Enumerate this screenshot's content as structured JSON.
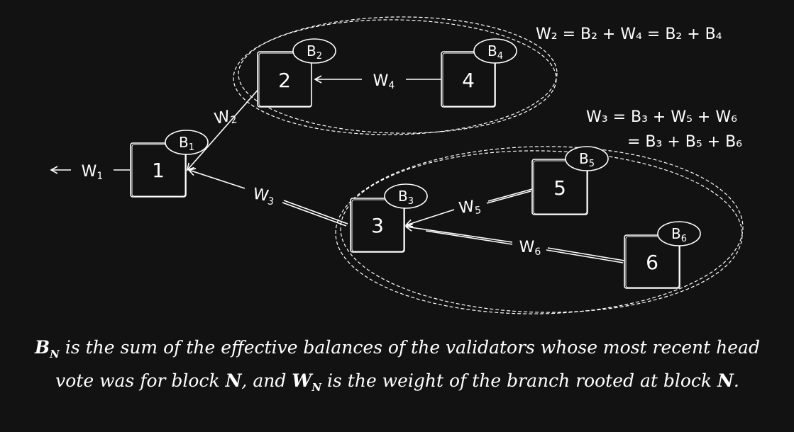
{
  "diagram": {
    "blocks": [
      {
        "id": "1",
        "label": "1",
        "balance": "B",
        "balance_sub": "1"
      },
      {
        "id": "2",
        "label": "2",
        "balance": "B",
        "balance_sub": "2"
      },
      {
        "id": "3",
        "label": "3",
        "balance": "B",
        "balance_sub": "3"
      },
      {
        "id": "4",
        "label": "4",
        "balance": "B",
        "balance_sub": "4"
      },
      {
        "id": "5",
        "label": "5",
        "balance": "B",
        "balance_sub": "5"
      },
      {
        "id": "6",
        "label": "6",
        "balance": "B",
        "balance_sub": "6"
      }
    ],
    "edges": [
      {
        "from": "2",
        "to": "1",
        "label": "W",
        "sub": "2"
      },
      {
        "from": "3",
        "to": "1",
        "label": "W",
        "sub": "3"
      },
      {
        "from": "4",
        "to": "2",
        "label": "W",
        "sub": "4"
      },
      {
        "from": "5",
        "to": "3",
        "label": "W",
        "sub": "5"
      },
      {
        "from": "6",
        "to": "3",
        "label": "W",
        "sub": "6"
      }
    ],
    "outgoing": {
      "label": "W",
      "sub": "1"
    },
    "equations": {
      "w2": "W₂ = B₂ + W₄ = B₂ + B₄",
      "w3_line1": "W₃ = B₃ + W₅ + W₆",
      "w3_line2": "= B₃ + B₅ + B₆"
    },
    "colors": {
      "background": "#121212",
      "stroke": "#ffffff"
    }
  },
  "caption": {
    "b_n": "B",
    "n_sub": "N",
    "part1": " is the sum of the effective balances of the validators whose most recent head vote was for block ",
    "n": "N",
    "part2": ", and ",
    "w_n": "W",
    "part3": " is the weight of the branch rooted at block ",
    "end": "."
  }
}
